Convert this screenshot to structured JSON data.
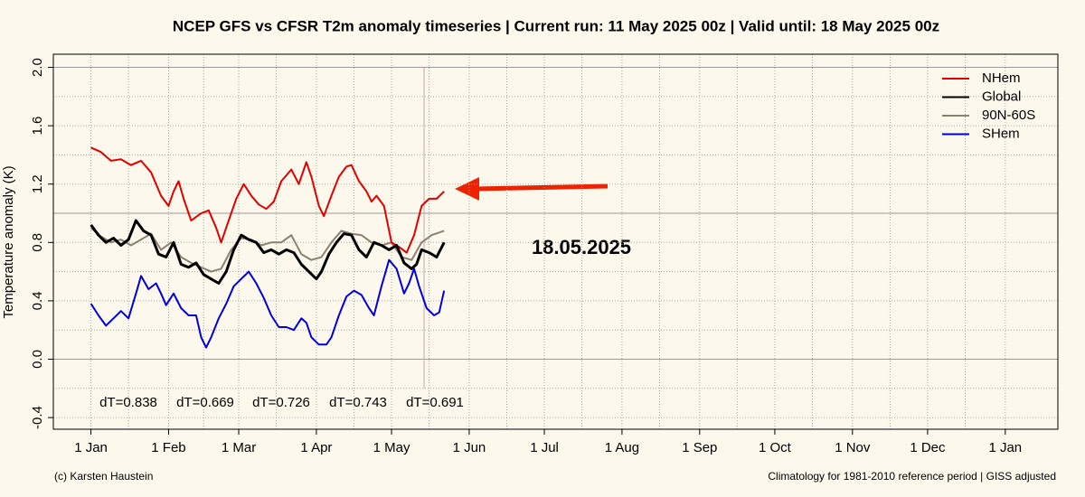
{
  "chart_data": {
    "type": "line",
    "title": "NCEP GFS vs CFSR T2m anomaly timeseries | Current run: 11 May 2025 00z | Valid until: 18 May 2025 00z",
    "y_label": "Temperature anomaly (K)",
    "annotation": "18.05.2025",
    "dt_labels": [
      "dT=0.838",
      "dT=0.669",
      "dT=0.726",
      "dT=0.743",
      "dT=0.691"
    ],
    "footer_left": "(c) Karsten Haustein",
    "footer_right": "Climatology for 1981-2010 reference period | GISS adjusted",
    "xlim": [
      -15,
      386
    ],
    "ylim": [
      -0.48,
      2.09
    ],
    "xticks": [
      {
        "value": 0,
        "label": "1 Jan"
      },
      {
        "value": 31,
        "label": "1 Feb"
      },
      {
        "value": 59,
        "label": "1 Mar"
      },
      {
        "value": 90,
        "label": "1 Apr"
      },
      {
        "value": 120,
        "label": "1 May"
      },
      {
        "value": 151,
        "label": "1 Jun"
      },
      {
        "value": 181,
        "label": "1 Jul"
      },
      {
        "value": 212,
        "label": "1 Aug"
      },
      {
        "value": 243,
        "label": "1 Sep"
      },
      {
        "value": 273,
        "label": "1 Oct"
      },
      {
        "value": 304,
        "label": "1 Nov"
      },
      {
        "value": 334,
        "label": "1 Dec"
      },
      {
        "value": 365,
        "label": "1 Jan"
      }
    ],
    "yticks": [
      -0.4,
      {
        "value": 0,
        "label": "0.0"
      },
      0.4,
      0.8,
      1.2,
      1.6,
      {
        "value": 2,
        "label": "2.0"
      }
    ],
    "grid": true,
    "grid_y": [
      -0.4,
      -0.2,
      0.2,
      0.4,
      0.6,
      0.8,
      1.2,
      1.4,
      1.6,
      1.8
    ],
    "grid_x": [
      0,
      15,
      31,
      45,
      59,
      74,
      90,
      105,
      120,
      135,
      151,
      166,
      181,
      196,
      212,
      227,
      243,
      258,
      273,
      288,
      304,
      319,
      334,
      349,
      365
    ],
    "hlines": [
      0,
      1,
      2
    ],
    "vline": 133,
    "legend": "top-right",
    "series": [
      {
        "name": "NHem",
        "color": "#e00000",
        "x": [
          0,
          4,
          8,
          12,
          16,
          20,
          24,
          28,
          31,
          33,
          35,
          37,
          40,
          44,
          47,
          50,
          52,
          55,
          58,
          61,
          64,
          67,
          70,
          73,
          76,
          80,
          83,
          86,
          88,
          91,
          93,
          96,
          99,
          102,
          104,
          107,
          110,
          112,
          114,
          117,
          120,
          123,
          126,
          129,
          132,
          135,
          138,
          141
        ],
        "values": [
          1.45,
          1.42,
          1.36,
          1.37,
          1.33,
          1.36,
          1.28,
          1.12,
          1.05,
          1.15,
          1.22,
          1.1,
          0.95,
          1.0,
          1.02,
          0.9,
          0.8,
          0.95,
          1.1,
          1.2,
          1.12,
          1.06,
          1.03,
          1.08,
          1.22,
          1.3,
          1.2,
          1.35,
          1.25,
          1.05,
          0.98,
          1.12,
          1.25,
          1.32,
          1.33,
          1.22,
          1.15,
          1.08,
          1.12,
          1.05,
          0.8,
          0.77,
          0.73,
          0.85,
          1.05,
          1.1,
          1.1,
          1.15
        ]
      },
      {
        "name": "Global",
        "color": "#000000",
        "x": [
          0,
          3,
          6,
          9,
          12,
          15,
          18,
          21,
          24,
          27,
          30,
          33,
          36,
          39,
          42,
          45,
          48,
          51,
          54,
          57,
          60,
          63,
          66,
          69,
          72,
          75,
          78,
          81,
          84,
          87,
          90,
          92,
          95,
          98,
          101,
          104,
          107,
          110,
          113,
          116,
          119,
          122,
          125,
          128,
          130,
          132,
          135,
          138,
          141
        ],
        "values": [
          0.92,
          0.85,
          0.8,
          0.83,
          0.78,
          0.82,
          0.95,
          0.88,
          0.85,
          0.72,
          0.7,
          0.8,
          0.65,
          0.63,
          0.66,
          0.58,
          0.55,
          0.52,
          0.6,
          0.75,
          0.85,
          0.82,
          0.8,
          0.73,
          0.75,
          0.72,
          0.75,
          0.73,
          0.65,
          0.6,
          0.55,
          0.6,
          0.72,
          0.8,
          0.86,
          0.85,
          0.75,
          0.7,
          0.8,
          0.78,
          0.75,
          0.78,
          0.66,
          0.62,
          0.65,
          0.75,
          0.73,
          0.7,
          0.8
        ]
      },
      {
        "name": "90N-60S",
        "color": "#8c8070",
        "x": [
          0,
          4,
          8,
          12,
          16,
          20,
          24,
          28,
          32,
          36,
          40,
          44,
          48,
          52,
          56,
          60,
          64,
          68,
          72,
          76,
          80,
          84,
          88,
          92,
          96,
          100,
          104,
          108,
          112,
          116,
          120,
          124,
          128,
          132,
          136,
          141
        ],
        "values": [
          0.9,
          0.84,
          0.8,
          0.82,
          0.78,
          0.82,
          0.86,
          0.75,
          0.8,
          0.7,
          0.66,
          0.63,
          0.6,
          0.62,
          0.75,
          0.83,
          0.82,
          0.78,
          0.8,
          0.8,
          0.85,
          0.72,
          0.68,
          0.7,
          0.8,
          0.88,
          0.86,
          0.85,
          0.8,
          0.78,
          0.8,
          0.7,
          0.68,
          0.8,
          0.85,
          0.88
        ]
      },
      {
        "name": "SHem",
        "color": "#0000dd",
        "x": [
          0,
          3,
          6,
          9,
          12,
          15,
          18,
          20,
          23,
          26,
          28,
          30,
          33,
          36,
          39,
          42,
          44,
          46,
          48,
          51,
          54,
          57,
          60,
          63,
          66,
          69,
          72,
          75,
          78,
          81,
          84,
          86,
          88,
          91,
          94,
          96,
          99,
          102,
          105,
          108,
          111,
          113,
          116,
          119,
          122,
          125,
          127,
          129,
          131,
          134,
          137,
          139,
          141
        ],
        "values": [
          0.38,
          0.3,
          0.23,
          0.28,
          0.33,
          0.28,
          0.45,
          0.57,
          0.48,
          0.52,
          0.45,
          0.37,
          0.45,
          0.35,
          0.3,
          0.3,
          0.15,
          0.08,
          0.15,
          0.28,
          0.38,
          0.5,
          0.55,
          0.6,
          0.52,
          0.42,
          0.3,
          0.22,
          0.22,
          0.2,
          0.28,
          0.25,
          0.15,
          0.1,
          0.1,
          0.15,
          0.3,
          0.43,
          0.47,
          0.44,
          0.35,
          0.3,
          0.5,
          0.68,
          0.62,
          0.45,
          0.52,
          0.62,
          0.5,
          0.35,
          0.3,
          0.32,
          0.47
        ]
      }
    ]
  }
}
